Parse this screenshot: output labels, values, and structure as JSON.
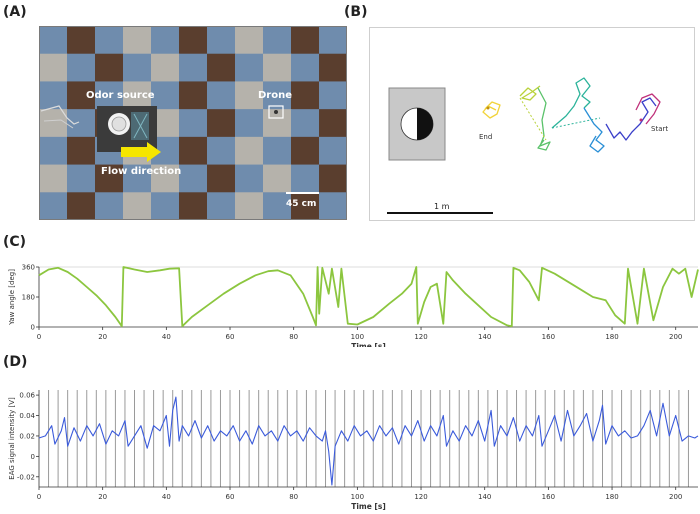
{
  "panels": {
    "a": {
      "label": "(A)",
      "odor_source": "Odor source",
      "drone": "Drone",
      "flow_direction": "Flow direction",
      "scale_bar": "45 cm"
    },
    "b": {
      "label": "(B)",
      "end": "End",
      "start": "Start",
      "scale_bar": "1 m"
    },
    "c": {
      "label": "(C)"
    },
    "d": {
      "label": "(D)"
    }
  },
  "colors": {
    "floor_blue": "#6f8cad",
    "floor_brown": "#5a3e2e",
    "floor_gray": "#b5b2ab",
    "arrow_yellow": "#f5e600",
    "yaw_line": "#8cc63f",
    "eag_line": "#3b5bdb",
    "event_lines": "#9a9a9a",
    "traj_colors": [
      "#f2d33a",
      "#b9d23a",
      "#5ac26a",
      "#2bb39a",
      "#2a8fd6",
      "#3a3fc9",
      "#c0307a"
    ]
  },
  "chart_data": [
    {
      "type": "line",
      "panel": "(C)",
      "xlabel": "Time [s]",
      "ylabel": "Yaw angle [deg]",
      "xlim": [
        0,
        207
      ],
      "ylim": [
        0,
        360
      ],
      "x_ticks": [
        0,
        20,
        40,
        60,
        80,
        100,
        120,
        140,
        160,
        180,
        200
      ],
      "y_ticks": [
        0,
        180,
        360
      ],
      "series": [
        {
          "values": [
            [
              0,
              310
            ],
            [
              3,
              345
            ],
            [
              6,
              355
            ],
            [
              9,
              330
            ],
            [
              12,
              290
            ],
            [
              15,
              240
            ],
            [
              18,
              190
            ],
            [
              21,
              130
            ],
            [
              24,
              60
            ],
            [
              26,
              5
            ],
            [
              26.5,
              360
            ],
            [
              30,
              345
            ],
            [
              34,
              330
            ],
            [
              38,
              340
            ],
            [
              41,
              350
            ],
            [
              44,
              352
            ],
            [
              45,
              5
            ],
            [
              48,
              60
            ],
            [
              53,
              130
            ],
            [
              58,
              200
            ],
            [
              63,
              260
            ],
            [
              68,
              310
            ],
            [
              72,
              335
            ],
            [
              75,
              340
            ],
            [
              79,
              310
            ],
            [
              83,
              200
            ],
            [
              86,
              60
            ],
            [
              87,
              10
            ],
            [
              87.5,
              360
            ],
            [
              88,
              80
            ],
            [
              89,
              355
            ],
            [
              91,
              200
            ],
            [
              92,
              350
            ],
            [
              94,
              120
            ],
            [
              95,
              350
            ],
            [
              97,
              20
            ],
            [
              100,
              15
            ],
            [
              105,
              60
            ],
            [
              110,
              140
            ],
            [
              114,
              200
            ],
            [
              117,
              260
            ],
            [
              118.5,
              360
            ],
            [
              119,
              20
            ],
            [
              121,
              150
            ],
            [
              123,
              240
            ],
            [
              125,
              260
            ],
            [
              127,
              20
            ],
            [
              128,
              330
            ],
            [
              130,
              280
            ],
            [
              134,
              200
            ],
            [
              138,
              130
            ],
            [
              142,
              60
            ],
            [
              147,
              10
            ],
            [
              148.5,
              5
            ],
            [
              149,
              355
            ],
            [
              151,
              340
            ],
            [
              154,
              270
            ],
            [
              157,
              160
            ],
            [
              158,
              355
            ],
            [
              162,
              320
            ],
            [
              168,
              250
            ],
            [
              174,
              180
            ],
            [
              178,
              160
            ],
            [
              181,
              70
            ],
            [
              184,
              20
            ],
            [
              185,
              350
            ],
            [
              188,
              20
            ],
            [
              190,
              350
            ],
            [
              193,
              40
            ],
            [
              196,
              240
            ],
            [
              199,
              350
            ],
            [
              201,
              320
            ],
            [
              203,
              350
            ],
            [
              205,
              180
            ],
            [
              207,
              345
            ]
          ]
        }
      ]
    },
    {
      "type": "line",
      "panel": "(D)",
      "xlabel": "Time [s]",
      "ylabel": "EAG signal intensity [V]",
      "xlim": [
        0,
        207
      ],
      "ylim": [
        -0.03,
        0.065
      ],
      "x_ticks": [
        0,
        20,
        40,
        60,
        80,
        100,
        120,
        140,
        160,
        180,
        200
      ],
      "y_ticks": [
        -0.02,
        0,
        0.02,
        0.04,
        0.06
      ],
      "y_tick_labels": [
        "-0.02",
        "0",
        "0.02",
        "0.04",
        "0.06"
      ],
      "event_times": [
        3,
        6,
        9,
        12,
        15,
        18,
        21,
        24,
        27,
        30,
        33,
        36,
        39,
        42,
        45,
        48,
        51,
        54,
        57,
        60,
        63,
        66,
        69,
        72,
        75,
        78,
        81,
        84,
        87,
        90,
        93,
        96,
        99,
        102,
        105,
        108,
        111,
        114,
        117,
        120,
        123,
        126,
        129,
        132,
        135,
        138,
        141,
        144,
        147,
        150,
        153,
        156,
        159,
        162,
        165,
        168,
        171,
        174,
        177,
        180,
        183,
        186,
        189,
        192,
        195,
        198,
        201,
        204
      ],
      "series": [
        {
          "values": [
            [
              0,
              0.018
            ],
            [
              2,
              0.02
            ],
            [
              4,
              0.03
            ],
            [
              5,
              0.012
            ],
            [
              7,
              0.025
            ],
            [
              8,
              0.038
            ],
            [
              9,
              0.01
            ],
            [
              11,
              0.028
            ],
            [
              13,
              0.015
            ],
            [
              15,
              0.03
            ],
            [
              17,
              0.02
            ],
            [
              19,
              0.032
            ],
            [
              21,
              0.012
            ],
            [
              23,
              0.025
            ],
            [
              25,
              0.02
            ],
            [
              27,
              0.035
            ],
            [
              28,
              0.01
            ],
            [
              30,
              0.02
            ],
            [
              32,
              0.03
            ],
            [
              34,
              0.008
            ],
            [
              36,
              0.03
            ],
            [
              38,
              0.025
            ],
            [
              40,
              0.04
            ],
            [
              41,
              0.01
            ],
            [
              42,
              0.045
            ],
            [
              43,
              0.058
            ],
            [
              44,
              0.015
            ],
            [
              45,
              0.03
            ],
            [
              47,
              0.02
            ],
            [
              49,
              0.035
            ],
            [
              51,
              0.018
            ],
            [
              53,
              0.03
            ],
            [
              55,
              0.015
            ],
            [
              57,
              0.025
            ],
            [
              59,
              0.02
            ],
            [
              61,
              0.03
            ],
            [
              63,
              0.015
            ],
            [
              65,
              0.025
            ],
            [
              67,
              0.012
            ],
            [
              69,
              0.03
            ],
            [
              71,
              0.02
            ],
            [
              73,
              0.025
            ],
            [
              75,
              0.015
            ],
            [
              77,
              0.03
            ],
            [
              79,
              0.02
            ],
            [
              81,
              0.025
            ],
            [
              83,
              0.015
            ],
            [
              85,
              0.028
            ],
            [
              87,
              0.02
            ],
            [
              89,
              0.015
            ],
            [
              90,
              0.025
            ],
            [
              91,
              0.005
            ],
            [
              92,
              -0.028
            ],
            [
              93,
              0.01
            ],
            [
              95,
              0.025
            ],
            [
              97,
              0.015
            ],
            [
              99,
              0.03
            ],
            [
              101,
              0.02
            ],
            [
              103,
              0.025
            ],
            [
              105,
              0.015
            ],
            [
              107,
              0.03
            ],
            [
              109,
              0.02
            ],
            [
              111,
              0.028
            ],
            [
              113,
              0.012
            ],
            [
              115,
              0.03
            ],
            [
              117,
              0.02
            ],
            [
              119,
              0.035
            ],
            [
              121,
              0.015
            ],
            [
              123,
              0.03
            ],
            [
              125,
              0.02
            ],
            [
              127,
              0.04
            ],
            [
              128,
              0.01
            ],
            [
              130,
              0.025
            ],
            [
              132,
              0.015
            ],
            [
              134,
              0.03
            ],
            [
              136,
              0.02
            ],
            [
              138,
              0.035
            ],
            [
              140,
              0.015
            ],
            [
              142,
              0.045
            ],
            [
              143,
              0.01
            ],
            [
              145,
              0.03
            ],
            [
              147,
              0.02
            ],
            [
              149,
              0.038
            ],
            [
              151,
              0.015
            ],
            [
              153,
              0.03
            ],
            [
              155,
              0.02
            ],
            [
              157,
              0.04
            ],
            [
              158,
              0.01
            ],
            [
              160,
              0.025
            ],
            [
              162,
              0.04
            ],
            [
              164,
              0.015
            ],
            [
              166,
              0.045
            ],
            [
              168,
              0.02
            ],
            [
              170,
              0.03
            ],
            [
              172,
              0.042
            ],
            [
              174,
              0.015
            ],
            [
              176,
              0.035
            ],
            [
              177,
              0.05
            ],
            [
              178,
              0.012
            ],
            [
              180,
              0.03
            ],
            [
              182,
              0.02
            ],
            [
              184,
              0.025
            ],
            [
              186,
              0.018
            ],
            [
              188,
              0.02
            ],
            [
              190,
              0.03
            ],
            [
              192,
              0.045
            ],
            [
              194,
              0.02
            ],
            [
              196,
              0.052
            ],
            [
              198,
              0.02
            ],
            [
              200,
              0.04
            ],
            [
              202,
              0.015
            ],
            [
              204,
              0.02
            ],
            [
              206,
              0.018
            ],
            [
              207,
              0.02
            ]
          ]
        }
      ]
    }
  ]
}
